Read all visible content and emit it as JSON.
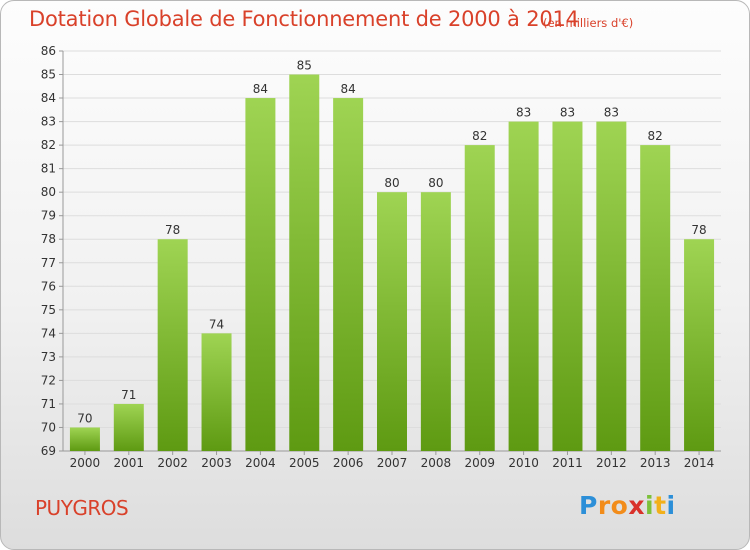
{
  "title": "Dotation Globale de Fonctionnement de 2000 à 2014",
  "subtitle": "(en milliers d'€)",
  "place": "PUYGROS",
  "logo": "Proxiti",
  "colors": {
    "title": "#d9412a",
    "bar_top": "#9fd453",
    "bar_bottom": "#5e9a12",
    "grid": "#dddddd",
    "axis": "#999999"
  },
  "chart_data": {
    "type": "bar",
    "categories": [
      "2000",
      "2001",
      "2002",
      "2003",
      "2004",
      "2005",
      "2006",
      "2007",
      "2008",
      "2009",
      "2010",
      "2011",
      "2012",
      "2013",
      "2014"
    ],
    "values": [
      70,
      71,
      78,
      74,
      84,
      85,
      84,
      80,
      80,
      82,
      83,
      83,
      83,
      82,
      78
    ],
    "ylim": [
      69,
      86
    ],
    "yticks": [
      69,
      70,
      71,
      72,
      73,
      74,
      75,
      76,
      77,
      78,
      79,
      80,
      81,
      82,
      83,
      84,
      85,
      86
    ],
    "grid": true,
    "legend": "none"
  }
}
